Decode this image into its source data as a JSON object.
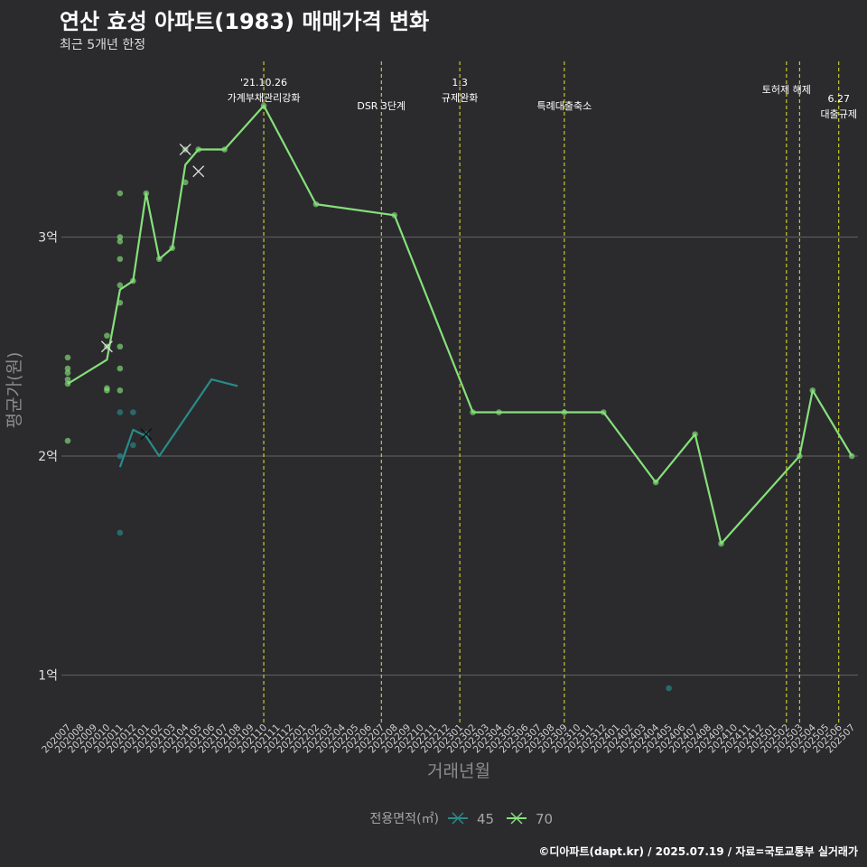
{
  "title": "연산 효성 아파트(1983) 매매가격 변화",
  "subtitle": "최근 5개년 한정",
  "caption": "©디아파트(dapt.kr) / 2025.07.19 / 자료=국토교통부 실거래가",
  "colors": {
    "background": "#2b2b2e",
    "grid": "#5a5a5a",
    "event_line": "#e6e62e",
    "series_45": "#2a8a8a",
    "series_70": "#86e07a"
  },
  "chart_data": {
    "type": "line",
    "title": "연산 효성 아파트(1983) 매매가격 변화",
    "subtitle": "최근 5개년 한정",
    "xlabel": "거래년월",
    "ylabel": "평균가(원)",
    "y_ticks": [
      {
        "value": 100000000,
        "label": "1억"
      },
      {
        "value": 200000000,
        "label": "2억"
      },
      {
        "value": 300000000,
        "label": "3억"
      }
    ],
    "ylim": [
      84000000,
      380000000
    ],
    "grid": "horizontal",
    "legend": {
      "title": "전용면적(㎡)",
      "position": "bottom",
      "entries": [
        "45",
        "70"
      ]
    },
    "categories": [
      "202007",
      "202008",
      "202009",
      "202010",
      "202011",
      "202012",
      "202101",
      "202102",
      "202103",
      "202104",
      "202105",
      "202106",
      "202107",
      "202108",
      "202109",
      "202110",
      "202111",
      "202112",
      "202201",
      "202202",
      "202203",
      "202204",
      "202205",
      "202206",
      "202207",
      "202208",
      "202209",
      "202210",
      "202211",
      "202212",
      "202301",
      "202302",
      "202303",
      "202304",
      "202305",
      "202306",
      "202307",
      "202308",
      "202309",
      "202310",
      "202311",
      "202312",
      "202401",
      "202402",
      "202403",
      "202404",
      "202405",
      "202406",
      "202407",
      "202408",
      "202409",
      "202410",
      "202411",
      "202412",
      "202501",
      "202502",
      "202503",
      "202504",
      "202505",
      "202506",
      "202507"
    ],
    "events": [
      {
        "at": "202110",
        "label_lines": [
          "'21.10.26",
          "가계부채관리강화"
        ]
      },
      {
        "at": "202207",
        "label_lines": [
          "DSR 3단계"
        ]
      },
      {
        "at": "202301",
        "label_lines": [
          "1.3",
          "규제완화"
        ]
      },
      {
        "at": "202309",
        "label_lines": [
          "특례대출축소"
        ]
      },
      {
        "at": "202502",
        "label_lines": [
          "토허제 해제"
        ]
      },
      {
        "at": "202503",
        "label_lines": []
      },
      {
        "at": "202506",
        "label_lines": [
          "6.27",
          "대출규제"
        ]
      }
    ],
    "series": [
      {
        "name": "45",
        "line": [
          {
            "x": "202011",
            "y": 195000000
          },
          {
            "x": "202012",
            "y": 212000000
          },
          {
            "x": "202101",
            "y": 209000000
          },
          {
            "x": "202102",
            "y": 200000000
          },
          {
            "x": "202106",
            "y": 235000000
          },
          {
            "x": "202108",
            "y": 232000000
          }
        ],
        "points": [
          {
            "x": "202011",
            "y": 220000000
          },
          {
            "x": "202011",
            "y": 200000000
          },
          {
            "x": "202011",
            "y": 165000000
          },
          {
            "x": "202012",
            "y": 220000000
          },
          {
            "x": "202012",
            "y": 205000000
          },
          {
            "x": "202101",
            "y": 210000000
          },
          {
            "x": "202405",
            "y": 94000000
          }
        ],
        "crosses": [
          {
            "x": "202101",
            "y": 210000000
          }
        ]
      },
      {
        "name": "70",
        "line": [
          {
            "x": "202007",
            "y": 233000000
          },
          {
            "x": "202010",
            "y": 244000000
          },
          {
            "x": "202011",
            "y": 276000000
          },
          {
            "x": "202012",
            "y": 280000000
          },
          {
            "x": "202101",
            "y": 320000000
          },
          {
            "x": "202102",
            "y": 290000000
          },
          {
            "x": "202103",
            "y": 295000000
          },
          {
            "x": "202104",
            "y": 333000000
          },
          {
            "x": "202105",
            "y": 340000000
          },
          {
            "x": "202107",
            "y": 340000000
          },
          {
            "x": "202110",
            "y": 360000000
          },
          {
            "x": "202202",
            "y": 315000000
          },
          {
            "x": "202208",
            "y": 310000000
          },
          {
            "x": "202302",
            "y": 220000000
          },
          {
            "x": "202304",
            "y": 220000000
          },
          {
            "x": "202309",
            "y": 220000000
          },
          {
            "x": "202312",
            "y": 220000000
          },
          {
            "x": "202404",
            "y": 188000000
          },
          {
            "x": "202407",
            "y": 210000000
          },
          {
            "x": "202409",
            "y": 160000000
          },
          {
            "x": "202503",
            "y": 200000000
          },
          {
            "x": "202504",
            "y": 230000000
          },
          {
            "x": "202507",
            "y": 200000000
          }
        ],
        "points": [
          {
            "x": "202007",
            "y": 245000000
          },
          {
            "x": "202007",
            "y": 240000000
          },
          {
            "x": "202007",
            "y": 238000000
          },
          {
            "x": "202007",
            "y": 235000000
          },
          {
            "x": "202007",
            "y": 233000000
          },
          {
            "x": "202007",
            "y": 207000000
          },
          {
            "x": "202010",
            "y": 255000000
          },
          {
            "x": "202010",
            "y": 250000000
          },
          {
            "x": "202010",
            "y": 231000000
          },
          {
            "x": "202010",
            "y": 230000000
          },
          {
            "x": "202011",
            "y": 320000000
          },
          {
            "x": "202011",
            "y": 300000000
          },
          {
            "x": "202011",
            "y": 298000000
          },
          {
            "x": "202011",
            "y": 290000000
          },
          {
            "x": "202011",
            "y": 278000000
          },
          {
            "x": "202011",
            "y": 270000000
          },
          {
            "x": "202011",
            "y": 250000000
          },
          {
            "x": "202011",
            "y": 240000000
          },
          {
            "x": "202011",
            "y": 230000000
          },
          {
            "x": "202012",
            "y": 280000000
          },
          {
            "x": "202101",
            "y": 320000000
          },
          {
            "x": "202102",
            "y": 290000000
          },
          {
            "x": "202103",
            "y": 295000000
          },
          {
            "x": "202104",
            "y": 325000000
          },
          {
            "x": "202104",
            "y": 340000000
          },
          {
            "x": "202105",
            "y": 340000000
          },
          {
            "x": "202107",
            "y": 340000000
          },
          {
            "x": "202110",
            "y": 360000000
          },
          {
            "x": "202202",
            "y": 315000000
          },
          {
            "x": "202208",
            "y": 310000000
          },
          {
            "x": "202302",
            "y": 220000000
          },
          {
            "x": "202304",
            "y": 220000000
          },
          {
            "x": "202309",
            "y": 220000000
          },
          {
            "x": "202312",
            "y": 220000000
          },
          {
            "x": "202404",
            "y": 188000000
          },
          {
            "x": "202407",
            "y": 210000000
          },
          {
            "x": "202409",
            "y": 160000000
          },
          {
            "x": "202503",
            "y": 200000000
          },
          {
            "x": "202504",
            "y": 230000000
          },
          {
            "x": "202507",
            "y": 200000000
          }
        ],
        "crosses": [
          {
            "x": "202010",
            "y": 250000000
          },
          {
            "x": "202104",
            "y": 340000000
          },
          {
            "x": "202105",
            "y": 330000000
          }
        ]
      }
    ]
  }
}
